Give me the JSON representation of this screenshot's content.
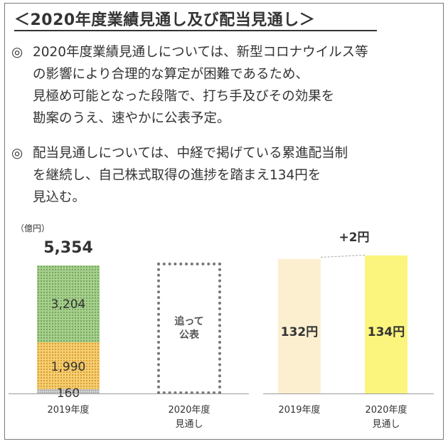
{
  "title": "＜2020年度業績見通し及び配当見通し＞",
  "bullet_mark": "◎",
  "paragraphs": [
    {
      "lines": [
        "2020年度業績見通しについては、新型コロナウイルス等",
        "の影響により合理的な算定が困難であるため、",
        "見極め可能となった段階で、打ち手及びその効果を",
        "勘案のうえ、速やかに公表予定。"
      ]
    },
    {
      "lines": [
        "配当見通しについては、中経で掲げている累進配当制",
        "を継続し、自己株式取得の進捗を踏まえ134円を",
        "見込む。"
      ]
    }
  ],
  "chart_data": [
    {
      "type": "bar",
      "stacked": true,
      "unit_label": "（億円）",
      "categories": [
        "2019年度",
        "2020年度\n見通し"
      ],
      "series": [
        {
          "values": [
            160,
            null
          ],
          "color": "#d8d8d8"
        },
        {
          "values": [
            1990,
            null
          ],
          "color": "#f5cf72"
        },
        {
          "values": [
            3204,
            null
          ],
          "color": "#a8d08d"
        }
      ],
      "totals": [
        "5,354",
        null
      ],
      "segment_labels": [
        "160",
        "1,990",
        "3,204"
      ],
      "pending_label": "追って\n公表",
      "xlabels": {
        "fy2019": "2019年度",
        "fy2020_line1": "2020年度",
        "fy2020_line2": "見通し"
      },
      "total_label": "5,354"
    },
    {
      "type": "bar",
      "categories": [
        "2019年度",
        "2020年度\n見通し"
      ],
      "values": [
        132,
        134
      ],
      "value_labels": [
        "132円",
        "134円"
      ],
      "colors": [
        "#fcefd0",
        "#fbf57d"
      ],
      "delta_label": "+2円",
      "xlabels": {
        "fy2019": "2019年度",
        "fy2020_line1": "2020年度",
        "fy2020_line2": "見通し"
      }
    }
  ]
}
